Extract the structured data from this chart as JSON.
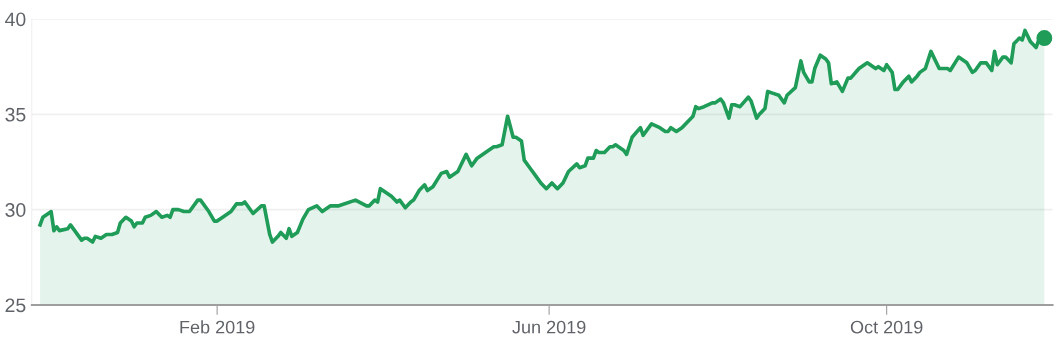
{
  "chart_data": {
    "type": "area",
    "x": [
      "2018-11-29",
      "2018-11-30",
      "2018-12-02",
      "2018-12-03",
      "2018-12-04",
      "2018-12-05",
      "2018-12-06",
      "2018-12-09",
      "2018-12-10",
      "2018-12-14",
      "2018-12-15",
      "2018-12-16",
      "2018-12-18",
      "2018-12-19",
      "2018-12-21",
      "2018-12-23",
      "2018-12-24",
      "2018-12-25",
      "2018-12-27",
      "2018-12-28",
      "2018-12-30",
      "2019-01-01",
      "2019-01-02",
      "2019-01-03",
      "2019-01-05",
      "2019-01-06",
      "2019-01-08",
      "2019-01-10",
      "2019-01-12",
      "2019-01-14",
      "2019-01-15",
      "2019-01-16",
      "2019-01-18",
      "2019-01-20",
      "2019-01-22",
      "2019-01-25",
      "2019-01-26",
      "2019-01-29",
      "2019-01-31",
      "2019-02-01",
      "2019-02-03",
      "2019-02-06",
      "2019-02-08",
      "2019-02-10",
      "2019-02-11",
      "2019-02-14",
      "2019-02-17",
      "2019-02-18",
      "2019-02-20",
      "2019-02-21",
      "2019-02-23",
      "2019-02-24",
      "2019-02-26",
      "2019-02-27",
      "2019-02-28",
      "2019-03-02",
      "2019-03-04",
      "2019-03-06",
      "2019-03-09",
      "2019-03-11",
      "2019-03-14",
      "2019-03-17",
      "2019-03-23",
      "2019-03-27",
      "2019-03-28",
      "2019-03-30",
      "2019-03-31",
      "2019-04-01",
      "2019-04-03",
      "2019-04-05",
      "2019-04-07",
      "2019-04-08",
      "2019-04-10",
      "2019-04-12",
      "2019-04-13",
      "2019-04-15",
      "2019-04-17",
      "2019-04-18",
      "2019-04-20",
      "2019-04-23",
      "2019-04-25",
      "2019-04-26",
      "2019-04-29",
      "2019-04-30",
      "2019-05-02",
      "2019-05-04",
      "2019-05-06",
      "2019-05-09",
      "2019-05-12",
      "2019-05-13",
      "2019-05-15",
      "2019-05-17",
      "2019-05-19",
      "2019-05-20",
      "2019-05-22",
      "2019-05-23",
      "2019-05-25",
      "2019-05-26",
      "2019-05-28",
      "2019-05-29",
      "2019-05-31",
      "2019-06-02",
      "2019-06-04",
      "2019-06-06",
      "2019-06-08",
      "2019-06-11",
      "2019-06-12",
      "2019-06-14",
      "2019-06-15",
      "2019-06-17",
      "2019-06-18",
      "2019-06-19",
      "2019-06-21",
      "2019-06-23",
      "2019-06-24",
      "2019-06-25",
      "2019-06-28",
      "2019-06-29",
      "2019-07-01",
      "2019-07-04",
      "2019-07-05",
      "2019-07-08",
      "2019-07-11",
      "2019-07-13",
      "2019-07-14",
      "2019-07-15",
      "2019-07-17",
      "2019-07-19",
      "2019-07-21",
      "2019-07-23",
      "2019-07-24",
      "2019-07-25",
      "2019-07-27",
      "2019-07-30",
      "2019-07-31",
      "2019-08-02",
      "2019-08-03",
      "2019-08-05",
      "2019-08-06",
      "2019-08-07",
      "2019-08-09",
      "2019-08-12",
      "2019-08-13",
      "2019-08-15",
      "2019-08-16",
      "2019-08-18",
      "2019-08-19",
      "2019-08-21",
      "2019-08-23",
      "2019-08-25",
      "2019-08-26",
      "2019-08-29",
      "2019-08-31",
      "2019-09-01",
      "2019-09-03",
      "2019-09-04",
      "2019-09-05",
      "2019-09-07",
      "2019-09-09",
      "2019-09-10",
      "2019-09-11",
      "2019-09-13",
      "2019-09-15",
      "2019-09-17",
      "2019-09-18",
      "2019-09-21",
      "2019-09-24",
      "2019-09-27",
      "2019-09-28",
      "2019-09-30",
      "2019-10-01",
      "2019-10-03",
      "2019-10-04",
      "2019-10-05",
      "2019-10-07",
      "2019-10-09",
      "2019-10-10",
      "2019-10-12",
      "2019-10-13",
      "2019-10-15",
      "2019-10-17",
      "2019-10-20",
      "2019-10-23",
      "2019-10-24",
      "2019-10-27",
      "2019-10-30",
      "2019-11-01",
      "2019-11-02",
      "2019-11-04",
      "2019-11-05",
      "2019-11-06",
      "2019-11-08",
      "2019-11-09",
      "2019-11-10",
      "2019-11-12",
      "2019-11-13",
      "2019-11-15",
      "2019-11-16",
      "2019-11-18",
      "2019-11-19",
      "2019-11-20",
      "2019-11-22",
      "2019-11-24",
      "2019-11-25",
      "2019-11-27"
    ],
    "series": [
      {
        "color": "#1e9c58",
        "values": [
          29.2,
          29.6,
          29.8,
          29.9,
          28.9,
          29.1,
          28.9,
          29.0,
          29.2,
          28.4,
          28.5,
          28.5,
          28.3,
          28.6,
          28.5,
          28.7,
          28.7,
          28.7,
          28.8,
          29.3,
          29.6,
          29.4,
          29.1,
          29.3,
          29.3,
          29.6,
          29.7,
          29.9,
          29.6,
          29.7,
          29.6,
          30.0,
          30.0,
          29.9,
          29.9,
          30.5,
          30.5,
          29.9,
          29.4,
          29.4,
          29.6,
          29.9,
          30.3,
          30.3,
          30.4,
          29.8,
          30.2,
          30.2,
          28.7,
          28.3,
          28.6,
          28.8,
          28.5,
          29.0,
          28.6,
          28.8,
          29.5,
          30.0,
          30.2,
          29.9,
          30.2,
          30.2,
          30.5,
          30.2,
          30.2,
          30.5,
          30.4,
          31.1,
          30.9,
          30.7,
          30.4,
          30.5,
          30.1,
          30.4,
          30.5,
          31.0,
          31.3,
          31.0,
          31.2,
          31.9,
          32.0,
          31.7,
          32.0,
          32.3,
          32.9,
          32.3,
          32.7,
          33.0,
          33.3,
          33.3,
          33.4,
          34.9,
          33.8,
          33.8,
          33.6,
          32.6,
          32.2,
          32.0,
          31.6,
          31.4,
          31.1,
          31.4,
          31.1,
          31.4,
          32.0,
          32.4,
          32.2,
          32.3,
          32.7,
          32.7,
          33.1,
          33.0,
          33.0,
          33.3,
          33.3,
          33.4,
          33.1,
          32.9,
          33.8,
          34.3,
          33.9,
          34.5,
          34.3,
          34.1,
          34.1,
          34.3,
          34.1,
          34.3,
          34.6,
          34.9,
          35.4,
          35.3,
          35.4,
          35.6,
          35.6,
          35.8,
          35.6,
          34.8,
          35.5,
          35.5,
          35.4,
          35.9,
          35.7,
          34.8,
          35.0,
          35.3,
          36.2,
          36.1,
          36.0,
          35.6,
          36.0,
          36.4,
          37.8,
          37.2,
          36.7,
          36.7,
          37.4,
          38.1,
          37.9,
          37.7,
          36.6,
          36.7,
          36.2,
          36.9,
          36.9,
          37.4,
          37.7,
          37.4,
          37.5,
          37.3,
          37.6,
          37.2,
          36.3,
          36.3,
          36.7,
          37.0,
          36.7,
          37.0,
          37.2,
          37.4,
          38.3,
          37.4,
          37.4,
          37.3,
          38.0,
          37.7,
          37.2,
          37.3,
          37.7,
          37.7,
          37.7,
          37.3,
          38.3,
          37.6,
          38.0,
          38.0,
          37.7,
          38.7,
          39.0,
          38.9,
          39.4,
          38.8,
          38.5,
          38.9,
          39.0
        ]
      },
      {
        "type": "scatter",
        "color": "#1e9c58",
        "marker": "circle",
        "x": [
          "2019-11-27"
        ],
        "values": [
          39.0
        ]
      }
    ],
    "xlim": [
      "2018-11-26",
      "2019-11-30"
    ],
    "xticks": [
      {
        "value": "2019-02-01",
        "label": "Feb 2019"
      },
      {
        "value": "2019-06-01",
        "label": "Jun 2019"
      },
      {
        "value": "2019-10-01",
        "label": "Oct 2019"
      }
    ],
    "ylim": [
      25,
      40
    ],
    "yticks": [
      25,
      30,
      35,
      40
    ],
    "grid": "y",
    "marker": "none",
    "line_style": "solid"
  }
}
